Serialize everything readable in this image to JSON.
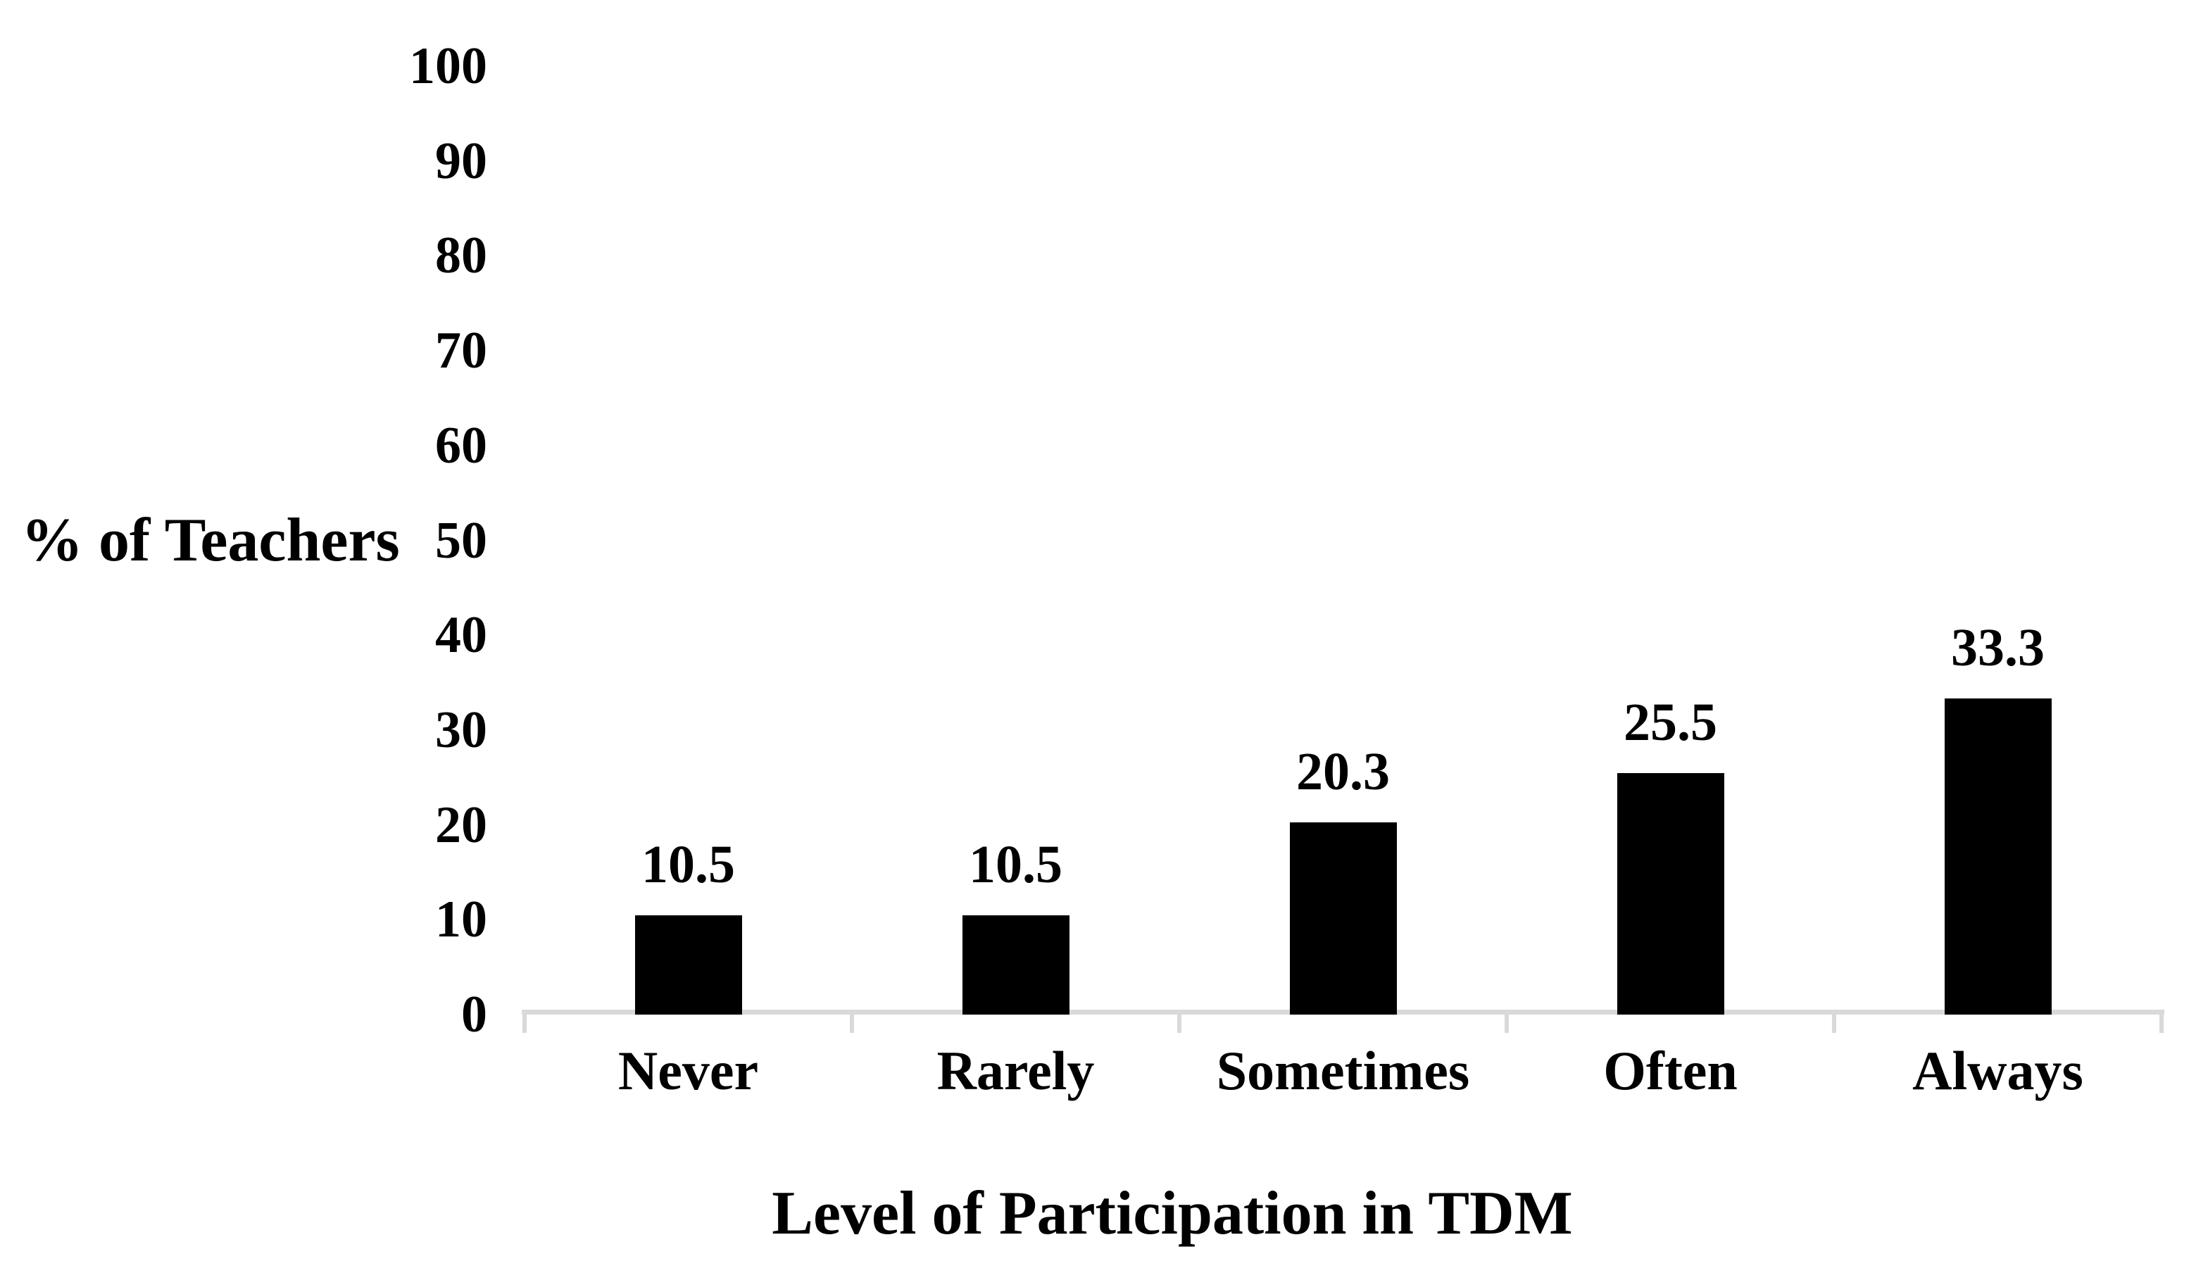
{
  "chart_data": {
    "type": "bar",
    "title": "",
    "xlabel": "Level of Participation in TDM",
    "ylabel": "% of Teachers",
    "categories": [
      "Never",
      "Rarely",
      "Sometimes",
      "Often",
      "Always"
    ],
    "values": [
      10.5,
      10.5,
      20.3,
      25.5,
      33.3
    ],
    "data_labels": [
      "10.5",
      "10.5",
      "20.3",
      "25.5",
      "33.3"
    ],
    "ylim": [
      0,
      100
    ],
    "ytick_step": 10,
    "yticks": [
      0,
      10,
      20,
      30,
      40,
      50,
      60,
      70,
      80,
      90,
      100
    ],
    "grid": false,
    "legend": false,
    "bar_color": "#000000",
    "axis_color": "#d9d9d9",
    "text_color": "#000000",
    "background_color": "#ffffff"
  }
}
